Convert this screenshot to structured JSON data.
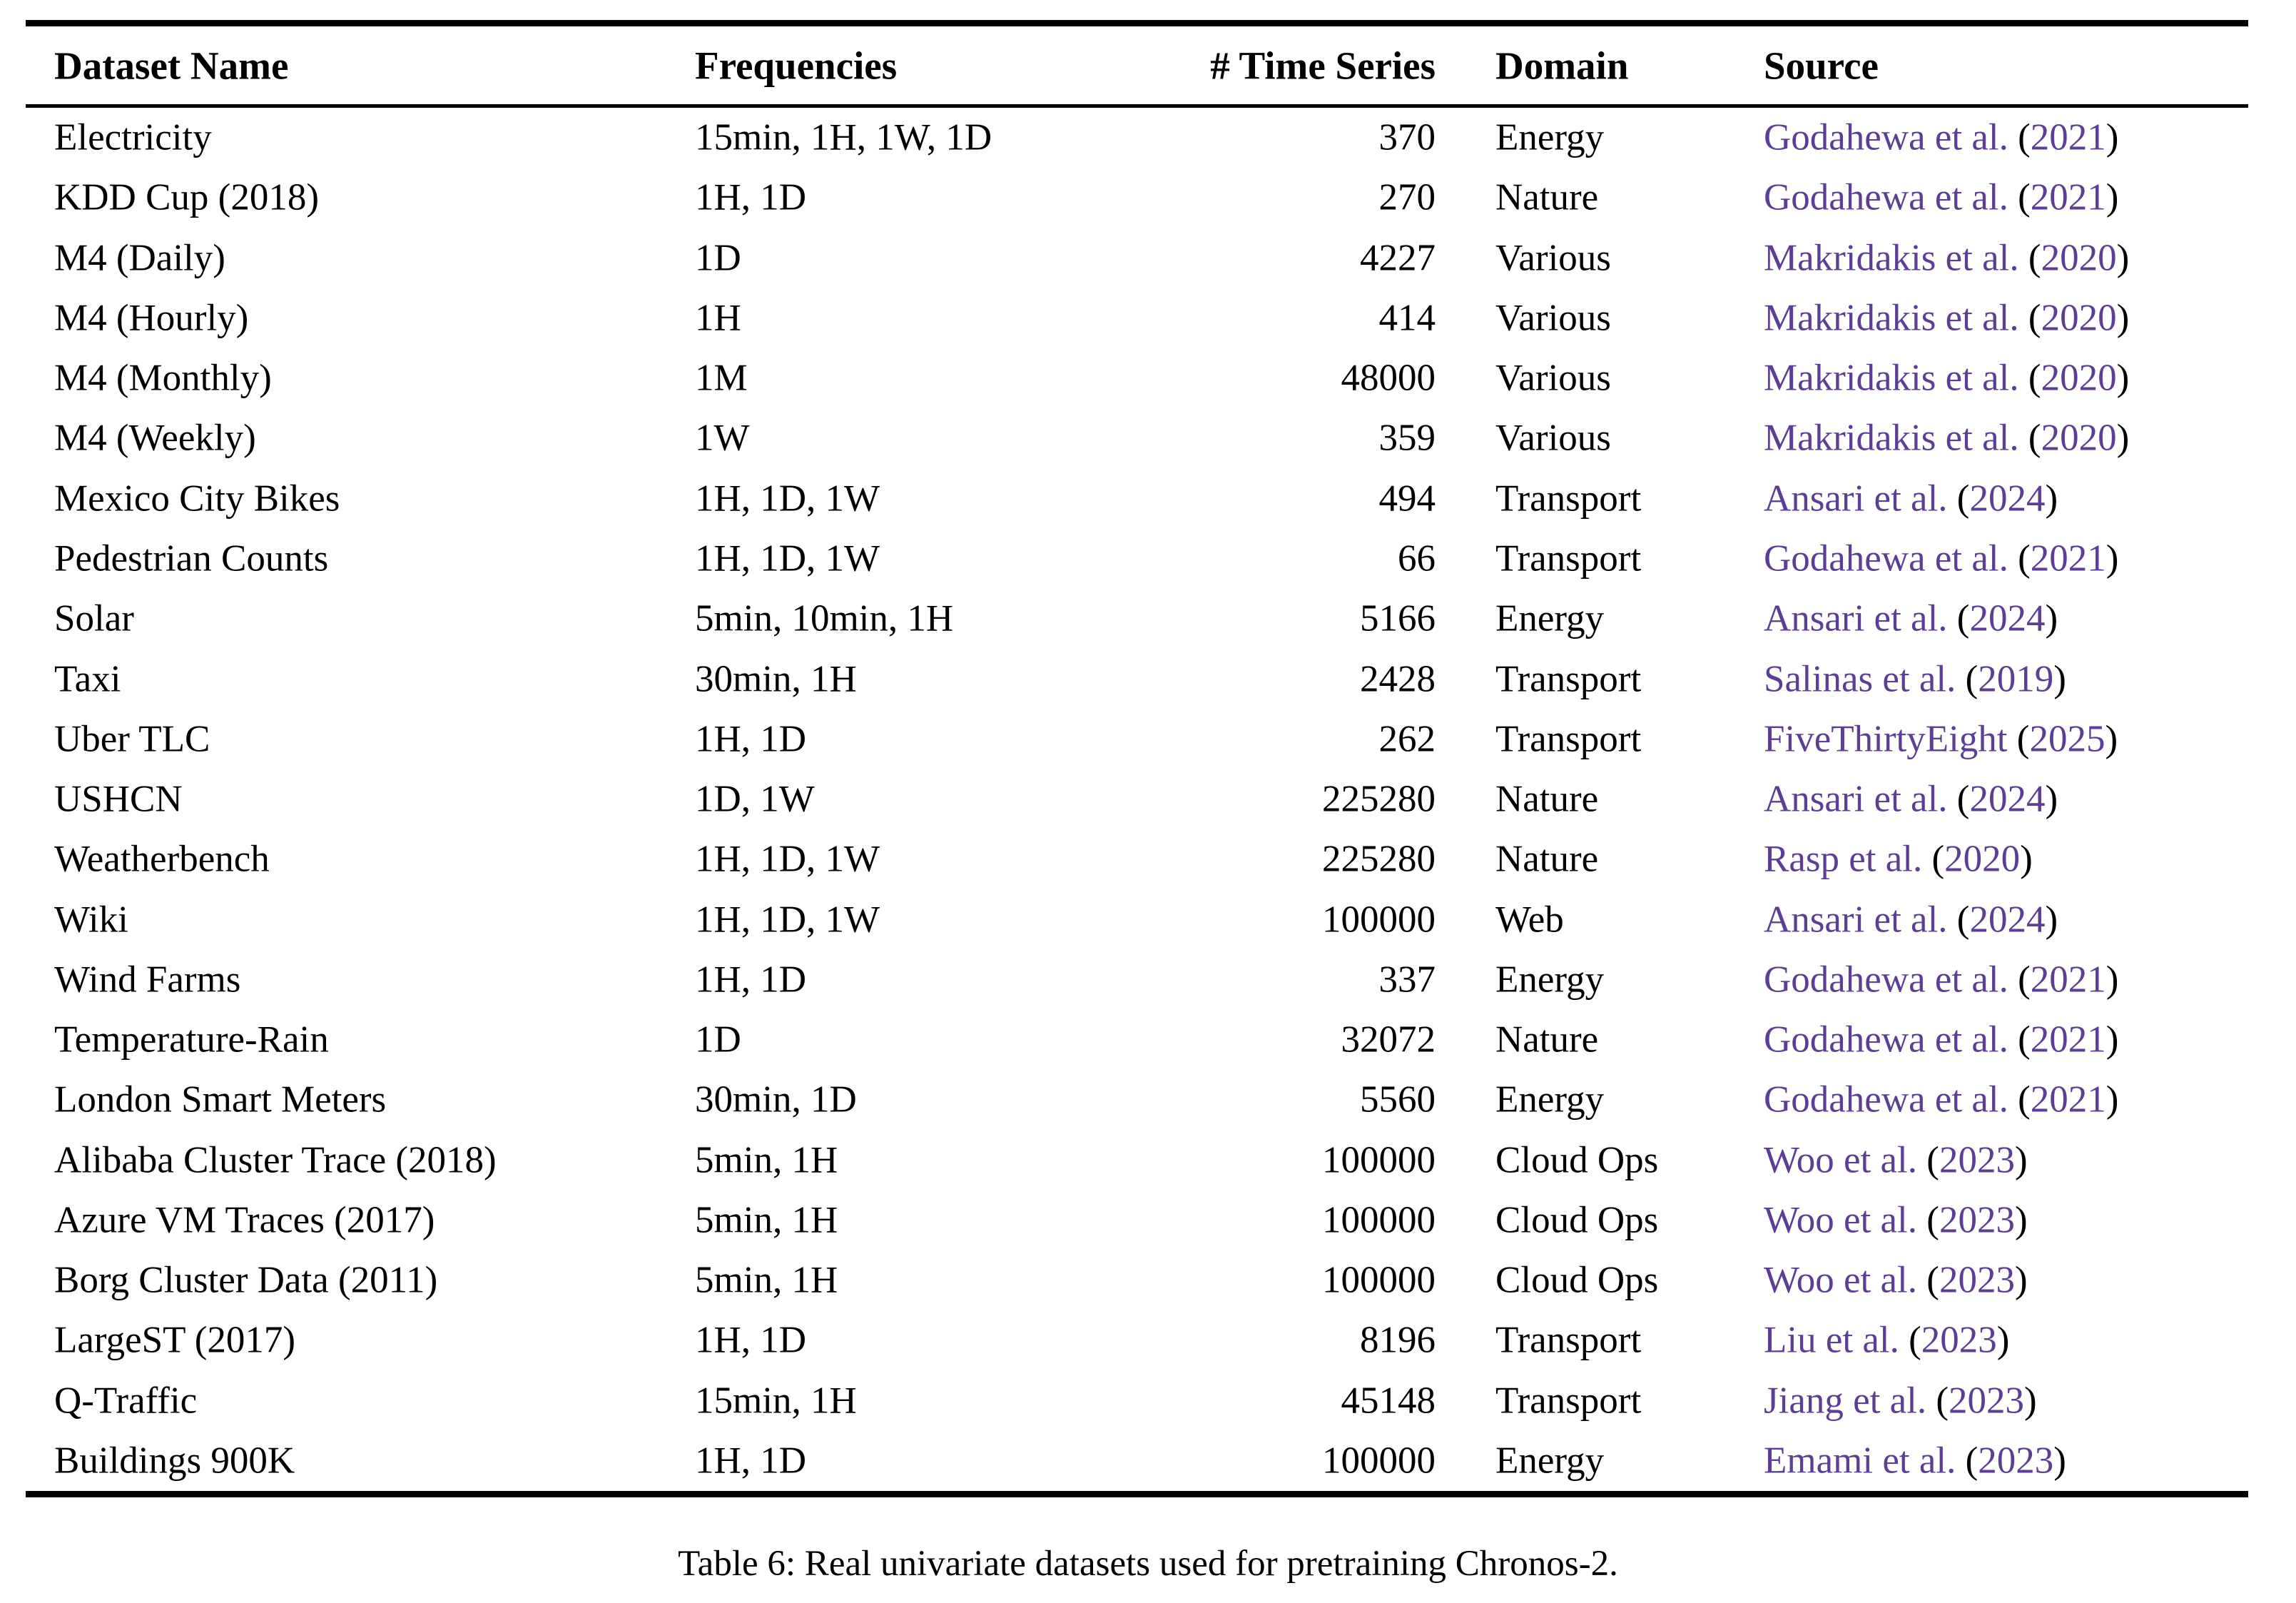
{
  "table": {
    "columns": [
      "Dataset Name",
      "Frequencies",
      "# Time Series",
      "Domain",
      "Source"
    ],
    "caption": "Table 6: Real univariate datasets used for pretraining Chronos-2.",
    "link_color": "#5D3E96",
    "citation_format": {
      "open_paren": "(",
      "close_paren": ")"
    },
    "rows": [
      {
        "name": "Electricity",
        "frequencies": "15min, 1H, 1W, 1D",
        "num_series": "370",
        "domain": "Energy",
        "source_author": "Godahewa et al.",
        "source_year": "2021"
      },
      {
        "name": "KDD Cup (2018)",
        "frequencies": "1H, 1D",
        "num_series": "270",
        "domain": "Nature",
        "source_author": "Godahewa et al.",
        "source_year": "2021"
      },
      {
        "name": "M4 (Daily)",
        "frequencies": "1D",
        "num_series": "4227",
        "domain": "Various",
        "source_author": "Makridakis et al.",
        "source_year": "2020"
      },
      {
        "name": "M4 (Hourly)",
        "frequencies": "1H",
        "num_series": "414",
        "domain": "Various",
        "source_author": "Makridakis et al.",
        "source_year": "2020"
      },
      {
        "name": "M4 (Monthly)",
        "frequencies": "1M",
        "num_series": "48000",
        "domain": "Various",
        "source_author": "Makridakis et al.",
        "source_year": "2020"
      },
      {
        "name": "M4 (Weekly)",
        "frequencies": "1W",
        "num_series": "359",
        "domain": "Various",
        "source_author": "Makridakis et al.",
        "source_year": "2020"
      },
      {
        "name": "Mexico City Bikes",
        "frequencies": "1H, 1D, 1W",
        "num_series": "494",
        "domain": "Transport",
        "source_author": "Ansari et al.",
        "source_year": "2024"
      },
      {
        "name": "Pedestrian Counts",
        "frequencies": "1H, 1D, 1W",
        "num_series": "66",
        "domain": "Transport",
        "source_author": "Godahewa et al.",
        "source_year": "2021"
      },
      {
        "name": "Solar",
        "frequencies": "5min, 10min, 1H",
        "num_series": "5166",
        "domain": "Energy",
        "source_author": "Ansari et al.",
        "source_year": "2024"
      },
      {
        "name": "Taxi",
        "frequencies": "30min, 1H",
        "num_series": "2428",
        "domain": "Transport",
        "source_author": "Salinas et al.",
        "source_year": "2019"
      },
      {
        "name": "Uber TLC",
        "frequencies": "1H, 1D",
        "num_series": "262",
        "domain": "Transport",
        "source_author": "FiveThirtyEight",
        "source_year": "2025"
      },
      {
        "name": "USHCN",
        "frequencies": "1D, 1W",
        "num_series": "225280",
        "domain": "Nature",
        "source_author": "Ansari et al.",
        "source_year": "2024"
      },
      {
        "name": "Weatherbench",
        "frequencies": "1H, 1D, 1W",
        "num_series": "225280",
        "domain": "Nature",
        "source_author": "Rasp et al.",
        "source_year": "2020"
      },
      {
        "name": "Wiki",
        "frequencies": "1H, 1D, 1W",
        "num_series": "100000",
        "domain": "Web",
        "source_author": "Ansari et al.",
        "source_year": "2024"
      },
      {
        "name": "Wind Farms",
        "frequencies": "1H, 1D",
        "num_series": "337",
        "domain": "Energy",
        "source_author": "Godahewa et al.",
        "source_year": "2021"
      },
      {
        "name": "Temperature-Rain",
        "frequencies": "1D",
        "num_series": "32072",
        "domain": "Nature",
        "source_author": "Godahewa et al.",
        "source_year": "2021"
      },
      {
        "name": "London Smart Meters",
        "frequencies": "30min, 1D",
        "num_series": "5560",
        "domain": "Energy",
        "source_author": "Godahewa et al.",
        "source_year": "2021"
      },
      {
        "name": "Alibaba Cluster Trace (2018)",
        "frequencies": "5min, 1H",
        "num_series": "100000",
        "domain": "Cloud Ops",
        "source_author": "Woo et al.",
        "source_year": "2023"
      },
      {
        "name": "Azure VM Traces (2017)",
        "frequencies": "5min, 1H",
        "num_series": "100000",
        "domain": "Cloud Ops",
        "source_author": "Woo et al.",
        "source_year": "2023"
      },
      {
        "name": "Borg Cluster Data (2011)",
        "frequencies": "5min, 1H",
        "num_series": "100000",
        "domain": "Cloud Ops",
        "source_author": "Woo et al.",
        "source_year": "2023"
      },
      {
        "name": "LargeST (2017)",
        "frequencies": "1H, 1D",
        "num_series": "8196",
        "domain": "Transport",
        "source_author": "Liu et al.",
        "source_year": "2023"
      },
      {
        "name": "Q-Traffic",
        "frequencies": "15min, 1H",
        "num_series": "45148",
        "domain": "Transport",
        "source_author": "Jiang et al.",
        "source_year": "2023"
      },
      {
        "name": "Buildings 900K",
        "frequencies": "1H, 1D",
        "num_series": "100000",
        "domain": "Energy",
        "source_author": "Emami et al.",
        "source_year": "2023"
      }
    ]
  }
}
